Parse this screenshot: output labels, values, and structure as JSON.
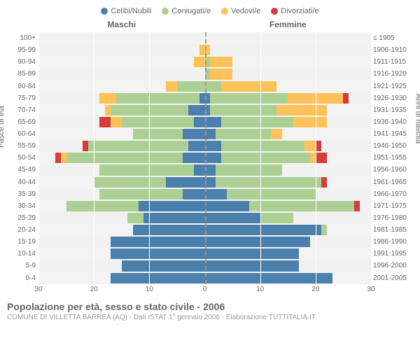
{
  "legend": [
    {
      "label": "Celibi/Nubili",
      "color": "#4b80ad"
    },
    {
      "label": "Coniugati/e",
      "color": "#accf94"
    },
    {
      "label": "Vedovi/e",
      "color": "#ffc259"
    },
    {
      "label": "Divorziati/e",
      "color": "#d73c3c"
    }
  ],
  "gender_left": "Maschi",
  "gender_right": "Femmine",
  "y_label_left": "Fasce di età",
  "y_label_right": "Anni di nascita",
  "title": "Popolazione per età, sesso e stato civile - 2006",
  "subtitle": "COMUNE DI VILLETTA BARREA (AQ) - Dati ISTAT 1° gennaio 2006 - Elaborazione TUTTITALIA.IT",
  "x_max": 30,
  "x_ticks_left": [
    30,
    20,
    10,
    0
  ],
  "x_ticks_right": [
    0,
    10,
    20,
    30
  ],
  "colors": {
    "celibi": "#4b80ad",
    "coniugati": "#accf94",
    "vedovi": "#ffc259",
    "divorziati": "#d73c3c",
    "grid": "#ffffff",
    "bg_alt": "#f3f3f3"
  },
  "rows": [
    {
      "age": "100+",
      "birth": "≤ 1905",
      "m": [
        0,
        0,
        0,
        0
      ],
      "f": [
        0,
        0,
        0,
        0
      ]
    },
    {
      "age": "95-99",
      "birth": "1906-1910",
      "m": [
        0,
        0,
        1,
        0
      ],
      "f": [
        0,
        0,
        1,
        0
      ]
    },
    {
      "age": "90-94",
      "birth": "1911-1915",
      "m": [
        0,
        0,
        2,
        0
      ],
      "f": [
        0,
        1,
        4,
        0
      ]
    },
    {
      "age": "85-89",
      "birth": "1916-1920",
      "m": [
        0,
        0,
        0,
        0
      ],
      "f": [
        0,
        1,
        4,
        0
      ]
    },
    {
      "age": "80-84",
      "birth": "1921-1925",
      "m": [
        0,
        5,
        2,
        0
      ],
      "f": [
        0,
        3,
        10,
        0
      ]
    },
    {
      "age": "75-79",
      "birth": "1926-1930",
      "m": [
        1,
        15,
        3,
        0
      ],
      "f": [
        1,
        14,
        10,
        1
      ]
    },
    {
      "age": "70-74",
      "birth": "1931-1935",
      "m": [
        3,
        14,
        1,
        0
      ],
      "f": [
        1,
        12,
        9,
        0
      ]
    },
    {
      "age": "65-69",
      "birth": "1936-1940",
      "m": [
        2,
        13,
        2,
        2
      ],
      "f": [
        3,
        13,
        6,
        0
      ]
    },
    {
      "age": "60-64",
      "birth": "1941-1945",
      "m": [
        4,
        9,
        0,
        0
      ],
      "f": [
        2,
        10,
        2,
        0
      ]
    },
    {
      "age": "55-59",
      "birth": "1946-1950",
      "m": [
        3,
        18,
        0,
        1
      ],
      "f": [
        3,
        15,
        2,
        1
      ]
    },
    {
      "age": "50-54",
      "birth": "1951-1955",
      "m": [
        4,
        21,
        1,
        1
      ],
      "f": [
        3,
        16,
        1,
        2
      ]
    },
    {
      "age": "45-49",
      "birth": "1956-1960",
      "m": [
        2,
        17,
        0,
        0
      ],
      "f": [
        2,
        12,
        0,
        0
      ]
    },
    {
      "age": "40-44",
      "birth": "1961-1965",
      "m": [
        7,
        13,
        0,
        0
      ],
      "f": [
        2,
        19,
        0,
        1
      ]
    },
    {
      "age": "35-39",
      "birth": "1966-1970",
      "m": [
        4,
        15,
        0,
        0
      ],
      "f": [
        4,
        16,
        0,
        0
      ]
    },
    {
      "age": "30-34",
      "birth": "1971-1975",
      "m": [
        12,
        13,
        0,
        0
      ],
      "f": [
        8,
        19,
        0,
        1
      ]
    },
    {
      "age": "25-29",
      "birth": "1976-1980",
      "m": [
        11,
        3,
        0,
        0
      ],
      "f": [
        10,
        6,
        0,
        0
      ]
    },
    {
      "age": "20-24",
      "birth": "1981-1985",
      "m": [
        13,
        0,
        0,
        0
      ],
      "f": [
        21,
        1,
        0,
        0
      ]
    },
    {
      "age": "15-19",
      "birth": "1986-1990",
      "m": [
        17,
        0,
        0,
        0
      ],
      "f": [
        19,
        0,
        0,
        0
      ]
    },
    {
      "age": "10-14",
      "birth": "1991-1995",
      "m": [
        17,
        0,
        0,
        0
      ],
      "f": [
        17,
        0,
        0,
        0
      ]
    },
    {
      "age": "5-9",
      "birth": "1996-2000",
      "m": [
        15,
        0,
        0,
        0
      ],
      "f": [
        17,
        0,
        0,
        0
      ]
    },
    {
      "age": "0-4",
      "birth": "2001-2005",
      "m": [
        17,
        0,
        0,
        0
      ],
      "f": [
        23,
        0,
        0,
        0
      ]
    }
  ]
}
